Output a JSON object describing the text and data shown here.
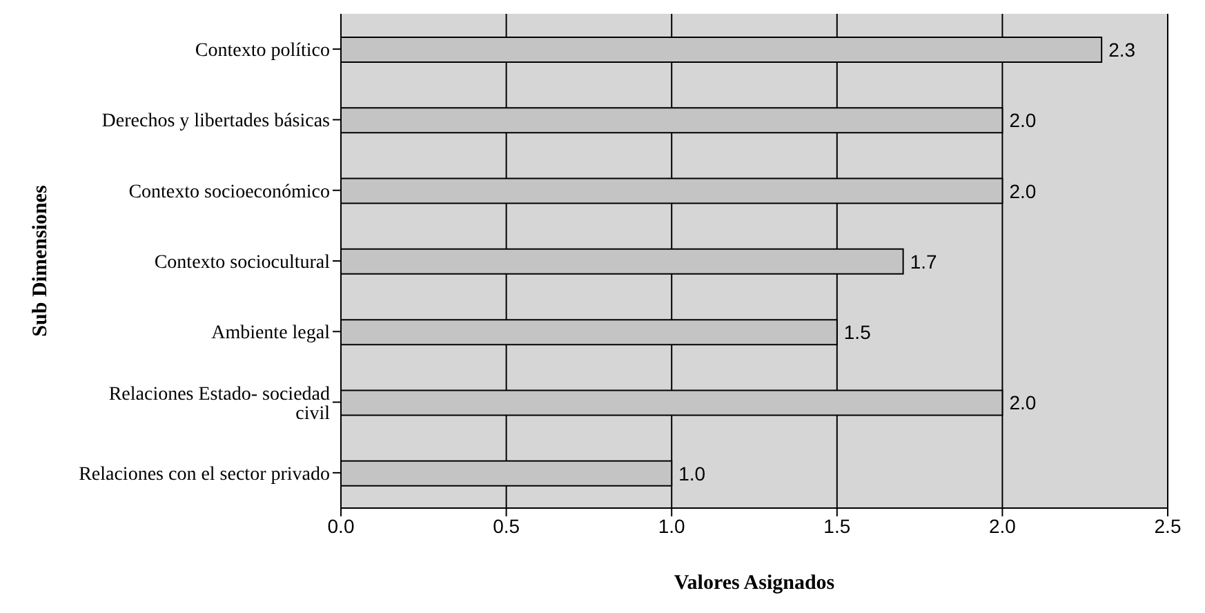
{
  "chart_data": {
    "type": "bar",
    "orientation": "horizontal",
    "xlabel": "Valores  Asignados",
    "ylabel": "Sub Dimensiones",
    "categories": [
      "Contexto político",
      "Derechos y libertades básicas",
      "Contexto socioeconómico",
      "Contexto sociocultural",
      "Ambiente legal",
      "Relaciones Estado- sociedad civil",
      "Relaciones con el sector privado"
    ],
    "values": [
      2.3,
      2.0,
      2.0,
      1.7,
      1.5,
      2.0,
      1.0
    ],
    "value_labels": [
      "2.3",
      "2.0",
      "2.0",
      "1.7",
      "1.5",
      "2.0",
      "1.0"
    ],
    "color": "#c4c4c4",
    "xlim": [
      0,
      2.5
    ],
    "xticks": [
      {
        "value": 0,
        "label": "0.0"
      },
      {
        "value": 0.5,
        "label": "0.5"
      },
      {
        "value": 1,
        "label": "1.0"
      },
      {
        "value": 1.5,
        "label": "1.5"
      },
      {
        "value": 2,
        "label": "2.0"
      },
      {
        "value": 2.5,
        "label": "2.5"
      }
    ],
    "grid": "x"
  }
}
